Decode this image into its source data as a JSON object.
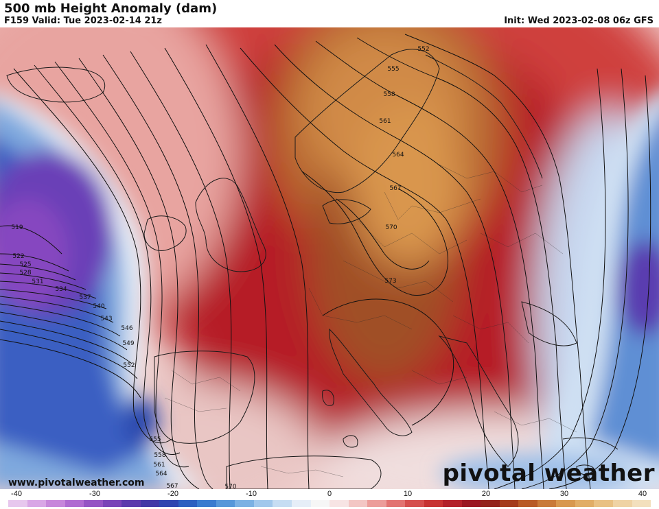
{
  "header": {
    "title": "500 mb Height Anomaly (dam)",
    "valid": "F159 Valid: Tue 2023-02-14 21z",
    "init": "Init: Wed 2023-02-08 06z GFS"
  },
  "footer": {
    "website": "www.pivotalweather.com",
    "brand_left": "pivotal",
    "brand_right": "weather"
  },
  "contour_labels": [
    "519",
    "522",
    "525",
    "528",
    "531",
    "534",
    "537",
    "540",
    "543",
    "546",
    "549",
    "552",
    "555",
    "558",
    "561",
    "564",
    "567",
    "570",
    "573",
    "552",
    "555",
    "558",
    "561",
    "564",
    "567",
    "570"
  ],
  "colorbar": {
    "ticks": [
      "-40",
      "-30",
      "-20",
      "-10",
      "0",
      "10",
      "20",
      "30",
      "40"
    ],
    "colors": [
      "#e7c7ee",
      "#d9a6e6",
      "#c786db",
      "#b06ad1",
      "#9553c4",
      "#7a43b8",
      "#5c3aad",
      "#4237a6",
      "#2f45b0",
      "#2d5fc0",
      "#3a7bcf",
      "#5797d9",
      "#7cb1e3",
      "#a2c8ec",
      "#c6ddf3",
      "#e6eef8",
      "#f6f6f6",
      "#f7e4e4",
      "#f3c6c4",
      "#ec9d9a",
      "#e27371",
      "#d54e4d",
      "#c73232",
      "#b3202a",
      "#9b1622",
      "#93221c",
      "#a43b1c",
      "#b85a26",
      "#c97a39",
      "#d8984f",
      "#e1ad66",
      "#e9c183",
      "#efd3a4",
      "#f3e0bd"
    ]
  }
}
